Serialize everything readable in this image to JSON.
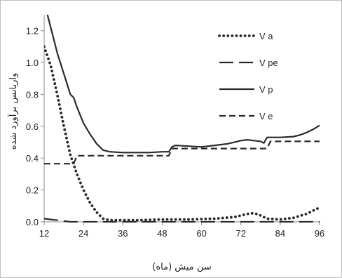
{
  "chart_data": {
    "type": "line",
    "xlabel": "سن میش (ماه)",
    "ylabel": "واریانس برآورد شده",
    "xlim": [
      12,
      96
    ],
    "ylim": [
      0,
      1.3
    ],
    "x_ticks": [
      12,
      24,
      36,
      48,
      60,
      72,
      84,
      96
    ],
    "x_tick_labels": [
      "12",
      "24",
      "36",
      "48",
      "60",
      "72",
      "84",
      "96"
    ],
    "y_ticks": [
      0,
      0.2,
      0.4,
      0.6,
      0.8,
      1.0,
      1.2
    ],
    "y_tick_labels": [
      "0.0",
      "0.2",
      "0.4",
      "0.6",
      "0.8",
      "1.0",
      "1.2"
    ],
    "grid": false,
    "legend_position": "top-right",
    "series": [
      {
        "name": "V a",
        "style": "dotted",
        "color": "#2a2a2a",
        "x": [
          12,
          14,
          16,
          18,
          20,
          22,
          24,
          26,
          28,
          30,
          32,
          36,
          40,
          48,
          56,
          64,
          70,
          74,
          76,
          78,
          80,
          84,
          88,
          92,
          96
        ],
        "y": [
          1.1,
          0.98,
          0.8,
          0.6,
          0.42,
          0.3,
          0.2,
          0.12,
          0.06,
          0.02,
          0.01,
          0.01,
          0.01,
          0.015,
          0.015,
          0.02,
          0.03,
          0.05,
          0.055,
          0.04,
          0.02,
          0.015,
          0.025,
          0.05,
          0.09
        ]
      },
      {
        "name": "V pe",
        "style": "long-dash",
        "color": "#2a2a2a",
        "x": [
          12,
          14,
          16,
          18,
          20,
          24,
          32,
          48,
          64,
          80,
          96
        ],
        "y": [
          0.02,
          0.015,
          0.01,
          0.005,
          0.0,
          0.0,
          0.0,
          0.0,
          0.0,
          0.0,
          0.0
        ]
      },
      {
        "name": "V p",
        "style": "solid",
        "color": "#2a2a2a",
        "x": [
          13,
          14,
          16,
          18,
          20,
          21,
          22,
          24,
          26,
          28,
          30,
          32,
          36,
          40,
          44,
          48,
          50,
          51,
          52,
          56,
          60,
          64,
          68,
          72,
          74,
          76,
          78,
          79,
          80,
          84,
          88,
          90,
          92,
          94,
          96
        ],
        "y": [
          1.3,
          1.22,
          1.06,
          0.93,
          0.8,
          0.78,
          0.72,
          0.62,
          0.55,
          0.49,
          0.45,
          0.44,
          0.435,
          0.435,
          0.435,
          0.44,
          0.44,
          0.47,
          0.48,
          0.475,
          0.47,
          0.48,
          0.49,
          0.51,
          0.515,
          0.51,
          0.505,
          0.495,
          0.53,
          0.53,
          0.535,
          0.545,
          0.56,
          0.58,
          0.605
        ]
      },
      {
        "name": "V e",
        "style": "short-dash",
        "color": "#2a2a2a",
        "x": [
          12,
          21,
          22,
          50,
          51,
          80,
          81,
          96
        ],
        "y": [
          0.365,
          0.365,
          0.415,
          0.415,
          0.46,
          0.46,
          0.505,
          0.505
        ]
      }
    ]
  }
}
